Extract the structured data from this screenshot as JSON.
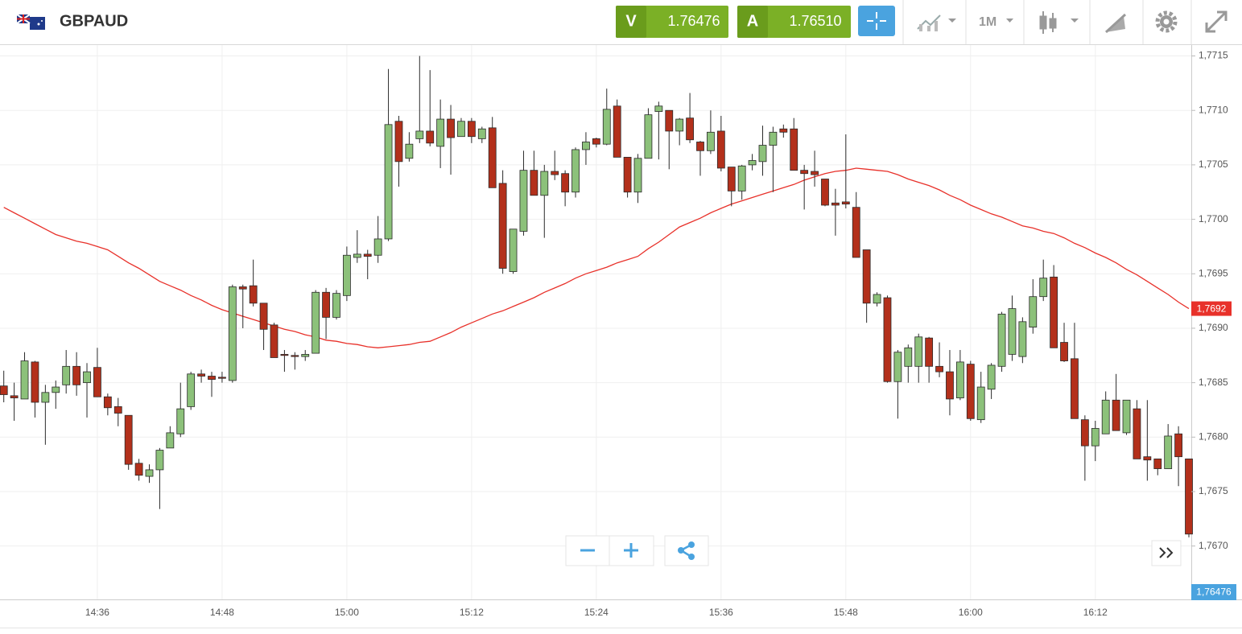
{
  "header": {
    "symbol": "GBPAUD",
    "bid_tag": "V",
    "bid": "1.76476",
    "ask_tag": "A",
    "ask": "1.76510",
    "timeframe": "1M"
  },
  "chart_data": {
    "type": "candlestick",
    "categories": [
      null,
      null,
      null,
      null,
      null,
      null,
      null,
      null,
      null,
      "14:36",
      null,
      null,
      null,
      null,
      null,
      null,
      null,
      null,
      null,
      null,
      null,
      "14:48",
      null,
      null,
      null,
      null,
      null,
      null,
      null,
      null,
      null,
      null,
      null,
      "15:00",
      null,
      null,
      null,
      null,
      null,
      null,
      null,
      null,
      null,
      null,
      null,
      "15:12",
      null,
      null,
      null,
      null,
      null,
      null,
      null,
      null,
      null,
      null,
      null,
      "15:24",
      null,
      null,
      null,
      null,
      null,
      null,
      null,
      null,
      null,
      null,
      null,
      "15:36",
      null,
      null,
      null,
      null,
      null,
      null,
      null,
      null,
      null,
      null,
      null,
      "15:48",
      null,
      null,
      null,
      null,
      null,
      null,
      null,
      null,
      null,
      null,
      null,
      "16:00",
      null,
      null,
      null,
      null,
      null,
      null,
      null,
      null,
      null,
      null,
      null,
      "16:12",
      null,
      null,
      null,
      null,
      null,
      null,
      null,
      null,
      null
    ],
    "open": [
      1.76847,
      1.76838,
      1.76835,
      1.76869,
      1.76832,
      1.76841,
      1.76848,
      1.76865,
      1.7685,
      1.76864,
      1.76837,
      1.76828,
      1.7682,
      1.76776,
      1.76764,
      1.7677,
      1.7679,
      1.76803,
      1.76828,
      1.76858,
      1.76856,
      1.76855,
      1.76852,
      1.76938,
      1.76939,
      1.76923,
      1.76903,
      1.76876,
      1.76875,
      1.76874,
      1.76877,
      1.76933,
      1.7691,
      1.7693,
      1.76965,
      1.76968,
      1.76967,
      1.76982,
      1.7709,
      1.77056,
      1.77074,
      1.77081,
      1.77067,
      1.77092,
      1.77076,
      1.7709,
      1.77074,
      1.77084,
      1.77033,
      1.76952,
      1.76989,
      1.77045,
      1.77022,
      1.77044,
      1.77042,
      1.77025,
      1.77064,
      1.77074,
      1.77069,
      1.77104,
      1.77057,
      1.77025,
      1.77056,
      1.77099,
      1.771,
      1.77081,
      1.77093,
      1.77071,
      1.77063,
      1.77081,
      1.77048,
      1.77026,
      1.7705,
      1.77053,
      1.77068,
      1.77083,
      1.77083,
      1.77045,
      1.77044,
      1.77037,
      1.77015,
      1.77016,
      1.77011,
      1.76972,
      1.76923,
      1.76928,
      1.76851,
      1.76865,
      1.76865,
      1.76891,
      1.76865,
      1.7686,
      1.76836,
      1.76867,
      1.76816,
      1.76844,
      1.76865,
      1.76876,
      1.76874,
      1.76901,
      1.76929,
      1.76947,
      1.76887,
      1.76872,
      1.76816,
      1.76792,
      1.76803,
      1.76834,
      1.76804,
      1.76826,
      1.76782,
      1.7678,
      1.76771,
      1.76803,
      1.7678
    ],
    "high": [
      1.76861,
      1.7685,
      1.76878,
      1.7687,
      1.76848,
      1.76852,
      1.7688,
      1.76878,
      1.76868,
      1.76882,
      1.7684,
      1.76836,
      1.7682,
      1.7678,
      1.76775,
      1.7679,
      1.7681,
      1.7685,
      1.7686,
      1.76862,
      1.7686,
      1.7686,
      1.7694,
      1.7694,
      1.76963,
      1.76923,
      1.76905,
      1.7688,
      1.76878,
      1.7688,
      1.76935,
      1.76937,
      1.76935,
      1.76975,
      1.7699,
      1.76972,
      1.77003,
      1.77138,
      1.77095,
      1.7708,
      1.7715,
      1.77137,
      1.7711,
      1.77105,
      1.77093,
      1.77093,
      1.77085,
      1.77094,
      1.77045,
      1.76991,
      1.77063,
      1.77063,
      1.7705,
      1.77063,
      1.77045,
      1.77066,
      1.7708,
      1.77075,
      1.7712,
      1.7711,
      1.77057,
      1.7706,
      1.77102,
      1.77108,
      1.771,
      1.77093,
      1.77116,
      1.77072,
      1.771,
      1.77095,
      1.77048,
      1.7705,
      1.7706,
      1.77086,
      1.77085,
      1.77087,
      1.77093,
      1.7705,
      1.77063,
      1.77037,
      1.77028,
      1.77078,
      1.77025,
      1.76972,
      1.76933,
      1.7693,
      1.7688,
      1.76885,
      1.76895,
      1.76892,
      1.76887,
      1.7688,
      1.7688,
      1.7687,
      1.7686,
      1.76868,
      1.76915,
      1.7693,
      1.7691,
      1.76945,
      1.76963,
      1.76958,
      1.76905,
      1.76905,
      1.7682,
      1.76815,
      1.76842,
      1.76858,
      1.76834,
      1.76834,
      1.76834,
      1.7678,
      1.76812,
      1.7681,
      1.7678
    ],
    "low": [
      1.76832,
      1.76815,
      1.76835,
      1.76818,
      1.76793,
      1.76826,
      1.7684,
      1.76838,
      1.76818,
      1.76837,
      1.7682,
      1.7681,
      1.7677,
      1.7676,
      1.76758,
      1.76734,
      1.7679,
      1.768,
      1.76825,
      1.7685,
      1.76837,
      1.7685,
      1.7685,
      1.769,
      1.7692,
      1.7688,
      1.76873,
      1.7686,
      1.76862,
      1.7687,
      1.76877,
      1.7689,
      1.76908,
      1.76925,
      1.7696,
      1.76945,
      1.7696,
      1.7698,
      1.7703,
      1.77053,
      1.7707,
      1.77067,
      1.77047,
      1.77041,
      1.77076,
      1.7707,
      1.7707,
      1.77029,
      1.7695,
      1.7695,
      1.76985,
      1.77022,
      1.76983,
      1.77036,
      1.77012,
      1.7702,
      1.7705,
      1.77066,
      1.77068,
      1.77057,
      1.7702,
      1.77015,
      1.77056,
      1.77055,
      1.77046,
      1.77068,
      1.7707,
      1.7704,
      1.7706,
      1.77044,
      1.77012,
      1.77018,
      1.77045,
      1.7704,
      1.77025,
      1.77075,
      1.77045,
      1.77009,
      1.7703,
      1.77012,
      1.76985,
      1.7701,
      1.76965,
      1.76905,
      1.7692,
      1.7685,
      1.76817,
      1.7685,
      1.7685,
      1.7685,
      1.76855,
      1.7682,
      1.76834,
      1.76815,
      1.76813,
      1.76835,
      1.7686,
      1.7687,
      1.76868,
      1.76895,
      1.76925,
      1.76882,
      1.76869,
      1.76817,
      1.7676,
      1.76778,
      1.76803,
      1.76806,
      1.76802,
      1.7678,
      1.7676,
      1.76765,
      1.76771,
      1.76755,
      1.76708
    ],
    "close": [
      1.76839,
      1.76836,
      1.7687,
      1.76832,
      1.76841,
      1.76846,
      1.76865,
      1.76848,
      1.7686,
      1.76837,
      1.76827,
      1.76822,
      1.76775,
      1.76765,
      1.7677,
      1.76788,
      1.76804,
      1.76826,
      1.76858,
      1.76856,
      1.76853,
      1.76854,
      1.76938,
      1.76936,
      1.76923,
      1.76899,
      1.76873,
      1.76875,
      1.76874,
      1.76876,
      1.76933,
      1.7691,
      1.76932,
      1.76967,
      1.76968,
      1.76966,
      1.76982,
      1.77087,
      1.77053,
      1.77069,
      1.77081,
      1.7707,
      1.77092,
      1.77075,
      1.7709,
      1.77076,
      1.77083,
      1.77029,
      1.76955,
      1.76991,
      1.77045,
      1.77022,
      1.77044,
      1.77041,
      1.77025,
      1.77064,
      1.77071,
      1.77069,
      1.77101,
      1.77057,
      1.77025,
      1.77056,
      1.77096,
      1.77104,
      1.77081,
      1.77092,
      1.77073,
      1.77063,
      1.7708,
      1.77047,
      1.77026,
      1.77049,
      1.77054,
      1.77068,
      1.7708,
      1.7708,
      1.77045,
      1.77042,
      1.77041,
      1.77013,
      1.77013,
      1.77014,
      1.76965,
      1.76923,
      1.76931,
      1.76851,
      1.76878,
      1.76882,
      1.76892,
      1.76865,
      1.7686,
      1.76835,
      1.76869,
      1.76817,
      1.76846,
      1.76866,
      1.76913,
      1.76918,
      1.76906,
      1.76929,
      1.76946,
      1.76882,
      1.7687,
      1.76817,
      1.76792,
      1.76808,
      1.76834,
      1.76806,
      1.76834,
      1.7678,
      1.76779,
      1.76771,
      1.76801,
      1.76782,
      1.76711
    ],
    "up_color": "#8cc17a",
    "down_color": "#b3301b",
    "outline_color": "#2a2a2a",
    "moving_average": {
      "color": "#e8312a",
      "last_label": "1,7692",
      "values": [
        1.77011,
        1.77006,
        1.77001,
        1.76996,
        1.76991,
        1.76986,
        1.76983,
        1.7698,
        1.76978,
        1.76975,
        1.76972,
        1.76966,
        1.7696,
        1.76955,
        1.76949,
        1.76943,
        1.76939,
        1.76935,
        1.7693,
        1.76926,
        1.76921,
        1.76917,
        1.76914,
        1.76911,
        1.76908,
        1.76905,
        1.76902,
        1.76899,
        1.76897,
        1.76894,
        1.76892,
        1.76889,
        1.76888,
        1.76886,
        1.76885,
        1.76883,
        1.76882,
        1.76883,
        1.76884,
        1.76885,
        1.76887,
        1.76888,
        1.76892,
        1.76896,
        1.76901,
        1.76905,
        1.76909,
        1.76913,
        1.76916,
        1.7692,
        1.76924,
        1.76928,
        1.76933,
        1.76937,
        1.76941,
        1.76946,
        1.7695,
        1.76953,
        1.76956,
        1.7696,
        1.76963,
        1.76966,
        1.76973,
        1.76979,
        1.76986,
        1.76993,
        1.76997,
        1.77001,
        1.77006,
        1.7701,
        1.77014,
        1.77017,
        1.7702,
        1.77023,
        1.77026,
        1.77029,
        1.77032,
        1.77036,
        1.77039,
        1.77042,
        1.77044,
        1.77045,
        1.77047,
        1.77046,
        1.77045,
        1.77044,
        1.77041,
        1.77037,
        1.77034,
        1.77031,
        1.77027,
        1.77022,
        1.77018,
        1.77013,
        1.77009,
        1.77005,
        1.77002,
        1.76998,
        1.76994,
        1.76992,
        1.76989,
        1.76987,
        1.76983,
        1.76978,
        1.76974,
        1.76969,
        1.76965,
        1.7696,
        1.76954,
        1.76949,
        1.76943,
        1.76937,
        1.76931,
        1.76924,
        1.76918
      ]
    },
    "price_label": "1,76476",
    "ylim": [
      1.76651,
      1.7716
    ],
    "yticks": [
      {
        "value": 1.7715,
        "label": "1,7715"
      },
      {
        "value": 1.771,
        "label": "1,7710"
      },
      {
        "value": 1.7705,
        "label": "1,7705"
      },
      {
        "value": 1.77,
        "label": "1,7700"
      },
      {
        "value": 1.7695,
        "label": "1,7695"
      },
      {
        "value": 1.769,
        "label": "1,7690"
      },
      {
        "value": 1.7685,
        "label": "1,7685"
      },
      {
        "value": 1.768,
        "label": "1,7680"
      },
      {
        "value": 1.7675,
        "label": "1,7675"
      },
      {
        "value": 1.767,
        "label": "1,7670"
      }
    ],
    "grid": true
  }
}
